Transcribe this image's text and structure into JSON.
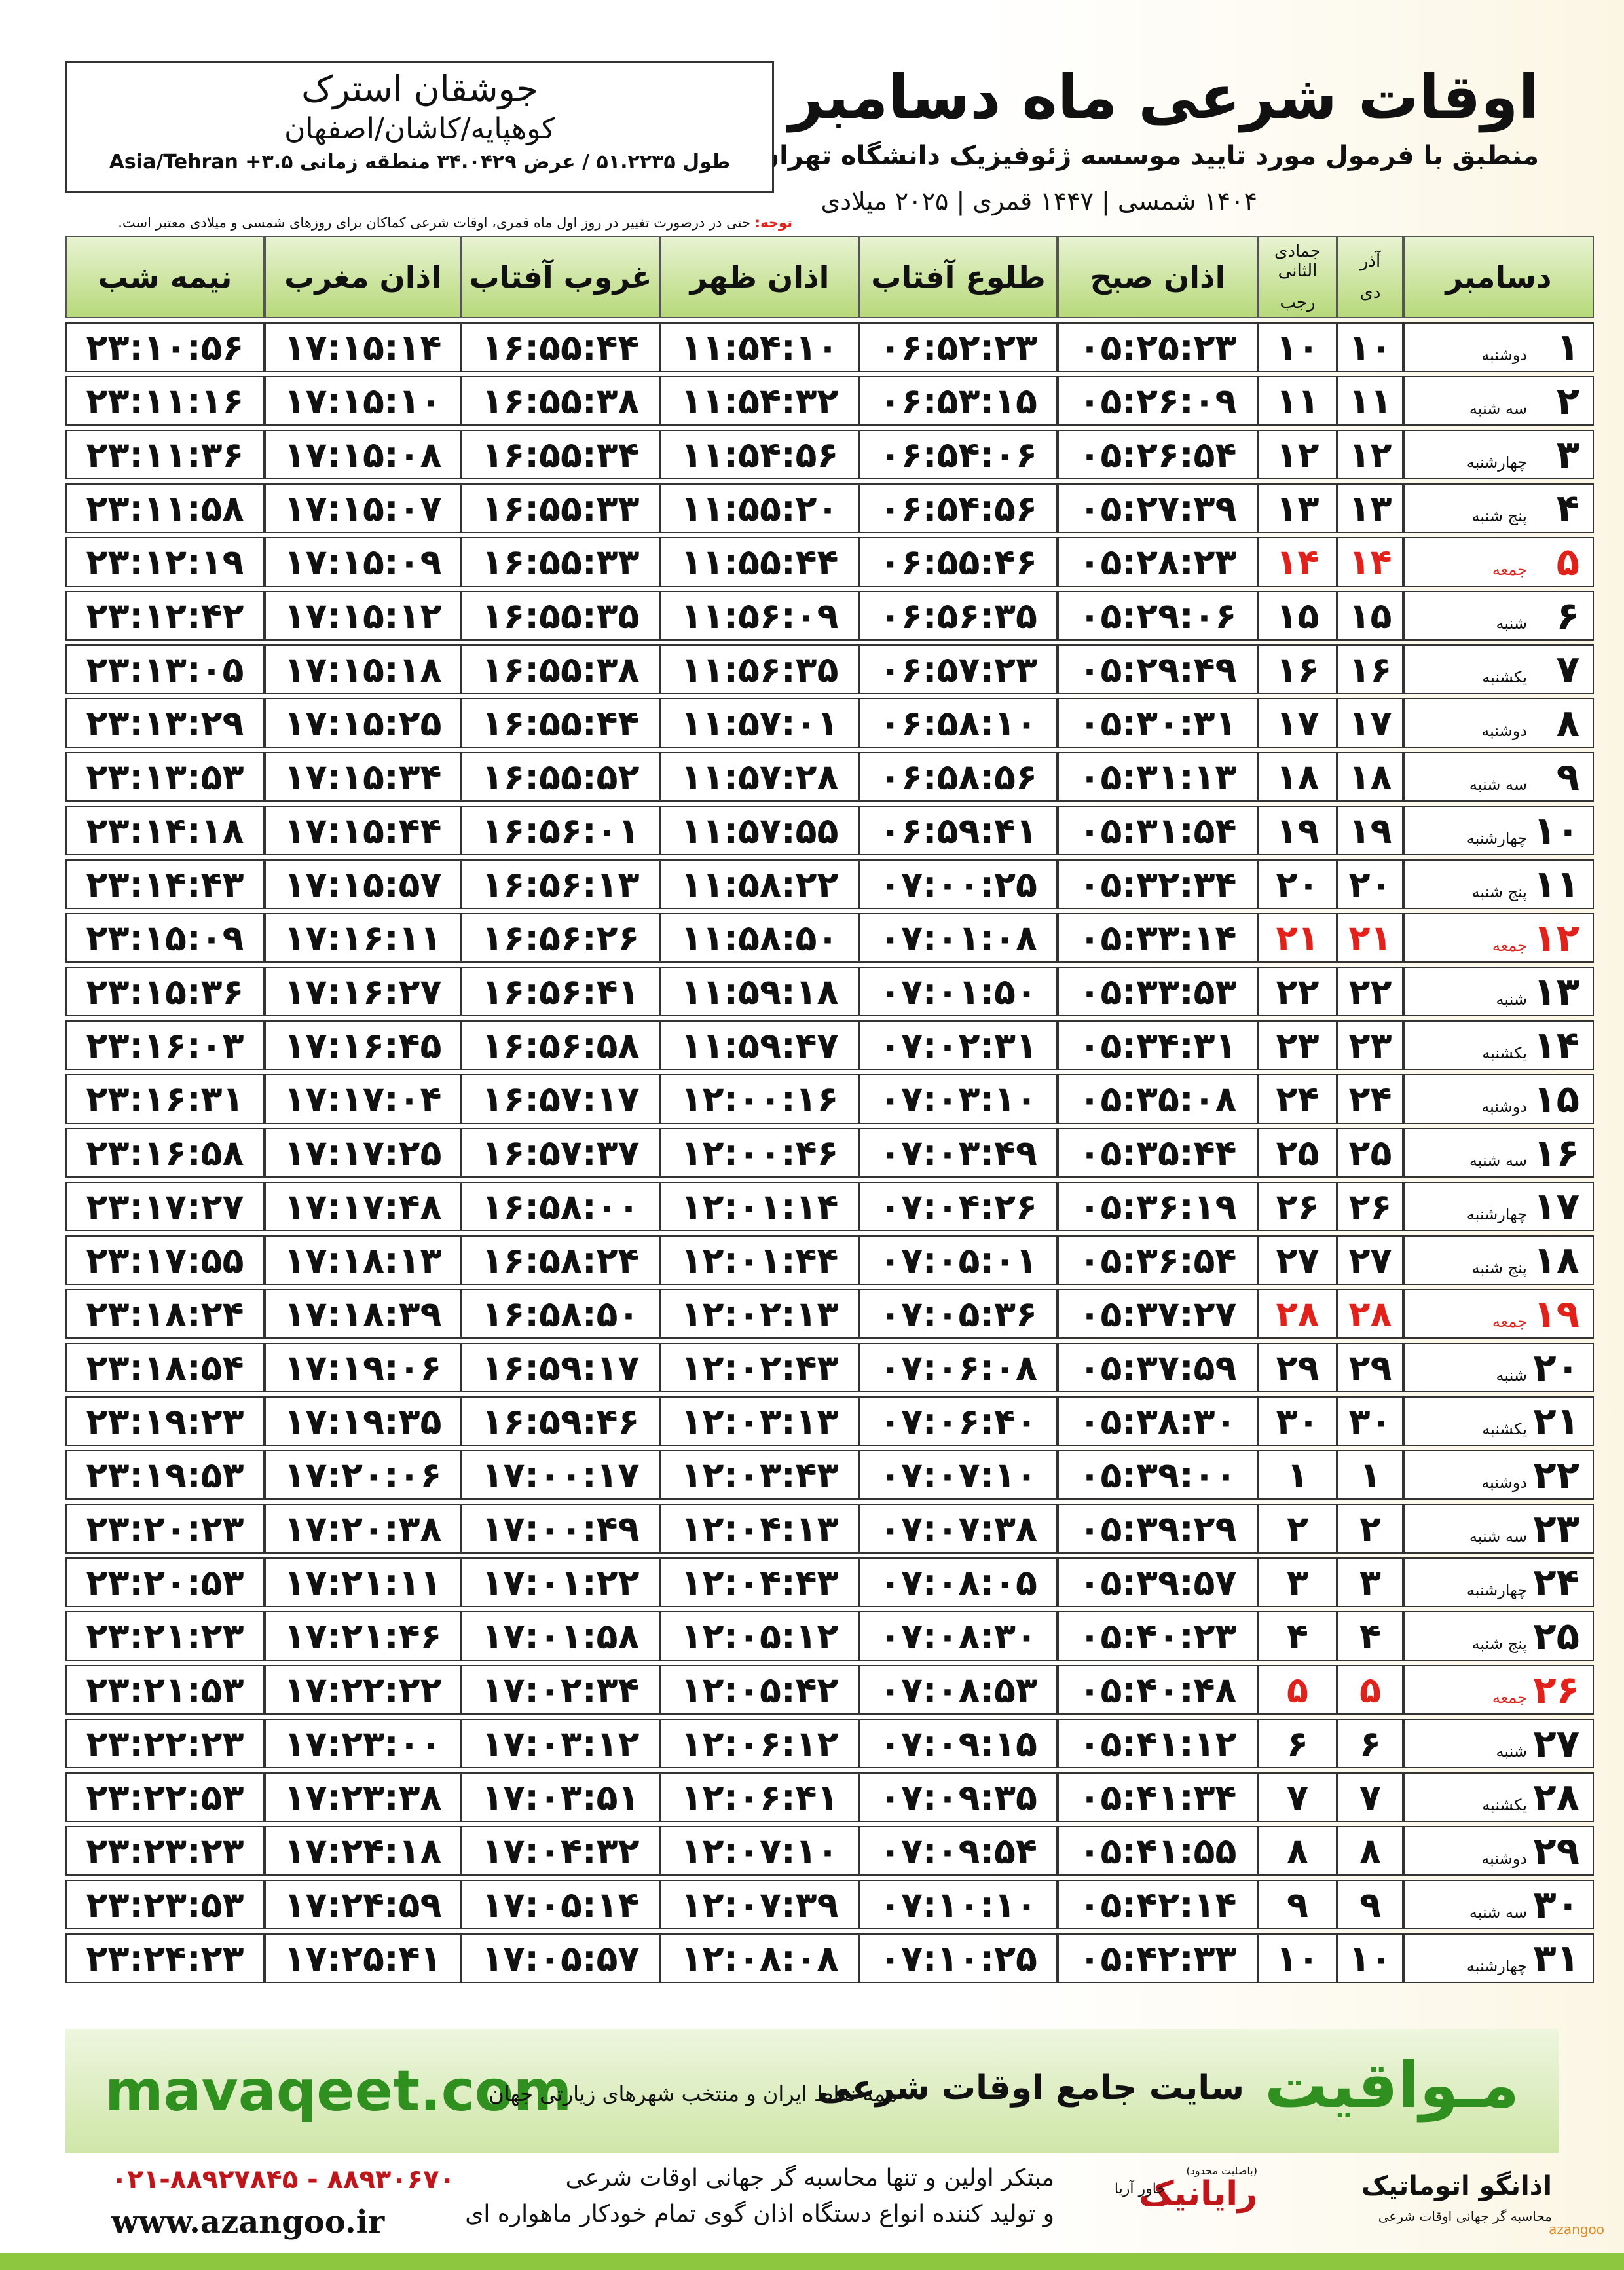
{
  "header": {
    "title": "اوقات شرعی ماه دسامبر",
    "subtitle": "منطبق با فرمول مورد تایید موسسه ژئوفیزیک دانشگاه تهران",
    "years": "۱۴۰۴ شمسی | ۱۴۴۷ قمری | ۲۰۲۵ میلادی"
  },
  "location": {
    "name": "جوشقان استرک",
    "region": "کوهپایه/کاشان/اصفهان",
    "coords": "طول ۵۱.۲۲۳۵ / عرض ۳۴.۰۴۲۹ منطقه زمانی ۳.۵+ Asia/Tehran"
  },
  "note": {
    "label": "توجه:",
    "text": "حتی در درصورت تغییر در روز اول ماه قمری، اوقات شرعی کماکان برای روزهای شمسی و میلادی معتبر است."
  },
  "table": {
    "columns": [
      "دسامبر",
      [
        "آذر",
        "دی"
      ],
      [
        "جمادی الثانی",
        "رجب"
      ],
      "اذان صبح",
      "طلوع آفتاب",
      "اذان ظهر",
      "غروب آفتاب",
      "اذان مغرب",
      "نیمه شب"
    ],
    "holiday_rows": [
      4,
      11,
      18,
      25
    ],
    "holiday_color": "#e3211b",
    "rows": [
      [
        "۱",
        "دوشنبه",
        "۱۰",
        "۱۰",
        "۰۵:۲۵:۲۳",
        "۰۶:۵۲:۲۳",
        "۱۱:۵۴:۱۰",
        "۱۶:۵۵:۴۴",
        "۱۷:۱۵:۱۴",
        "۲۳:۱۰:۵۶"
      ],
      [
        "۲",
        "سه شنبه",
        "۱۱",
        "۱۱",
        "۰۵:۲۶:۰۹",
        "۰۶:۵۳:۱۵",
        "۱۱:۵۴:۳۲",
        "۱۶:۵۵:۳۸",
        "۱۷:۱۵:۱۰",
        "۲۳:۱۱:۱۶"
      ],
      [
        "۳",
        "چهارشنبه",
        "۱۲",
        "۱۲",
        "۰۵:۲۶:۵۴",
        "۰۶:۵۴:۰۶",
        "۱۱:۵۴:۵۶",
        "۱۶:۵۵:۳۴",
        "۱۷:۱۵:۰۸",
        "۲۳:۱۱:۳۶"
      ],
      [
        "۴",
        "پنج شنبه",
        "۱۳",
        "۱۳",
        "۰۵:۲۷:۳۹",
        "۰۶:۵۴:۵۶",
        "۱۱:۵۵:۲۰",
        "۱۶:۵۵:۳۳",
        "۱۷:۱۵:۰۷",
        "۲۳:۱۱:۵۸"
      ],
      [
        "۵",
        "جمعه",
        "۱۴",
        "۱۴",
        "۰۵:۲۸:۲۳",
        "۰۶:۵۵:۴۶",
        "۱۱:۵۵:۴۴",
        "۱۶:۵۵:۳۳",
        "۱۷:۱۵:۰۹",
        "۲۳:۱۲:۱۹"
      ],
      [
        "۶",
        "شنبه",
        "۱۵",
        "۱۵",
        "۰۵:۲۹:۰۶",
        "۰۶:۵۶:۳۵",
        "۱۱:۵۶:۰۹",
        "۱۶:۵۵:۳۵",
        "۱۷:۱۵:۱۲",
        "۲۳:۱۲:۴۲"
      ],
      [
        "۷",
        "یکشنبه",
        "۱۶",
        "۱۶",
        "۰۵:۲۹:۴۹",
        "۰۶:۵۷:۲۳",
        "۱۱:۵۶:۳۵",
        "۱۶:۵۵:۳۸",
        "۱۷:۱۵:۱۸",
        "۲۳:۱۳:۰۵"
      ],
      [
        "۸",
        "دوشنبه",
        "۱۷",
        "۱۷",
        "۰۵:۳۰:۳۱",
        "۰۶:۵۸:۱۰",
        "۱۱:۵۷:۰۱",
        "۱۶:۵۵:۴۴",
        "۱۷:۱۵:۲۵",
        "۲۳:۱۳:۲۹"
      ],
      [
        "۹",
        "سه شنبه",
        "۱۸",
        "۱۸",
        "۰۵:۳۱:۱۳",
        "۰۶:۵۸:۵۶",
        "۱۱:۵۷:۲۸",
        "۱۶:۵۵:۵۲",
        "۱۷:۱۵:۳۴",
        "۲۳:۱۳:۵۳"
      ],
      [
        "۱۰",
        "چهارشنبه",
        "۱۹",
        "۱۹",
        "۰۵:۳۱:۵۴",
        "۰۶:۵۹:۴۱",
        "۱۱:۵۷:۵۵",
        "۱۶:۵۶:۰۱",
        "۱۷:۱۵:۴۴",
        "۲۳:۱۴:۱۸"
      ],
      [
        "۱۱",
        "پنج شنبه",
        "۲۰",
        "۲۰",
        "۰۵:۳۲:۳۴",
        "۰۷:۰۰:۲۵",
        "۱۱:۵۸:۲۲",
        "۱۶:۵۶:۱۳",
        "۱۷:۱۵:۵۷",
        "۲۳:۱۴:۴۳"
      ],
      [
        "۱۲",
        "جمعه",
        "۲۱",
        "۲۱",
        "۰۵:۳۳:۱۴",
        "۰۷:۰۱:۰۸",
        "۱۱:۵۸:۵۰",
        "۱۶:۵۶:۲۶",
        "۱۷:۱۶:۱۱",
        "۲۳:۱۵:۰۹"
      ],
      [
        "۱۳",
        "شنبه",
        "۲۲",
        "۲۲",
        "۰۵:۳۳:۵۳",
        "۰۷:۰۱:۵۰",
        "۱۱:۵۹:۱۸",
        "۱۶:۵۶:۴۱",
        "۱۷:۱۶:۲۷",
        "۲۳:۱۵:۳۶"
      ],
      [
        "۱۴",
        "یکشنبه",
        "۲۳",
        "۲۳",
        "۰۵:۳۴:۳۱",
        "۰۷:۰۲:۳۱",
        "۱۱:۵۹:۴۷",
        "۱۶:۵۶:۵۸",
        "۱۷:۱۶:۴۵",
        "۲۳:۱۶:۰۳"
      ],
      [
        "۱۵",
        "دوشنبه",
        "۲۴",
        "۲۴",
        "۰۵:۳۵:۰۸",
        "۰۷:۰۳:۱۰",
        "۱۲:۰۰:۱۶",
        "۱۶:۵۷:۱۷",
        "۱۷:۱۷:۰۴",
        "۲۳:۱۶:۳۱"
      ],
      [
        "۱۶",
        "سه شنبه",
        "۲۵",
        "۲۵",
        "۰۵:۳۵:۴۴",
        "۰۷:۰۳:۴۹",
        "۱۲:۰۰:۴۶",
        "۱۶:۵۷:۳۷",
        "۱۷:۱۷:۲۵",
        "۲۳:۱۶:۵۸"
      ],
      [
        "۱۷",
        "چهارشنبه",
        "۲۶",
        "۲۶",
        "۰۵:۳۶:۱۹",
        "۰۷:۰۴:۲۶",
        "۱۲:۰۱:۱۴",
        "۱۶:۵۸:۰۰",
        "۱۷:۱۷:۴۸",
        "۲۳:۱۷:۲۷"
      ],
      [
        "۱۸",
        "پنج شنبه",
        "۲۷",
        "۲۷",
        "۰۵:۳۶:۵۴",
        "۰۷:۰۵:۰۱",
        "۱۲:۰۱:۴۴",
        "۱۶:۵۸:۲۴",
        "۱۷:۱۸:۱۳",
        "۲۳:۱۷:۵۵"
      ],
      [
        "۱۹",
        "جمعه",
        "۲۸",
        "۲۸",
        "۰۵:۳۷:۲۷",
        "۰۷:۰۵:۳۶",
        "۱۲:۰۲:۱۳",
        "۱۶:۵۸:۵۰",
        "۱۷:۱۸:۳۹",
        "۲۳:۱۸:۲۴"
      ],
      [
        "۲۰",
        "شنبه",
        "۲۹",
        "۲۹",
        "۰۵:۳۷:۵۹",
        "۰۷:۰۶:۰۸",
        "۱۲:۰۲:۴۳",
        "۱۶:۵۹:۱۷",
        "۱۷:۱۹:۰۶",
        "۲۳:۱۸:۵۴"
      ],
      [
        "۲۱",
        "یکشنبه",
        "۳۰",
        "۳۰",
        "۰۵:۳۸:۳۰",
        "۰۷:۰۶:۴۰",
        "۱۲:۰۳:۱۳",
        "۱۶:۵۹:۴۶",
        "۱۷:۱۹:۳۵",
        "۲۳:۱۹:۲۳"
      ],
      [
        "۲۲",
        "دوشنبه",
        "۱",
        "۱",
        "۰۵:۳۹:۰۰",
        "۰۷:۰۷:۱۰",
        "۱۲:۰۳:۴۳",
        "۱۷:۰۰:۱۷",
        "۱۷:۲۰:۰۶",
        "۲۳:۱۹:۵۳"
      ],
      [
        "۲۳",
        "سه شنبه",
        "۲",
        "۲",
        "۰۵:۳۹:۲۹",
        "۰۷:۰۷:۳۸",
        "۱۲:۰۴:۱۳",
        "۱۷:۰۰:۴۹",
        "۱۷:۲۰:۳۸",
        "۲۳:۲۰:۲۳"
      ],
      [
        "۲۴",
        "چهارشنبه",
        "۳",
        "۳",
        "۰۵:۳۹:۵۷",
        "۰۷:۰۸:۰۵",
        "۱۲:۰۴:۴۳",
        "۱۷:۰۱:۲۲",
        "۱۷:۲۱:۱۱",
        "۲۳:۲۰:۵۳"
      ],
      [
        "۲۵",
        "پنج شنبه",
        "۴",
        "۴",
        "۰۵:۴۰:۲۳",
        "۰۷:۰۸:۳۰",
        "۱۲:۰۵:۱۲",
        "۱۷:۰۱:۵۸",
        "۱۷:۲۱:۴۶",
        "۲۳:۲۱:۲۳"
      ],
      [
        "۲۶",
        "جمعه",
        "۵",
        "۵",
        "۰۵:۴۰:۴۸",
        "۰۷:۰۸:۵۳",
        "۱۲:۰۵:۴۲",
        "۱۷:۰۲:۳۴",
        "۱۷:۲۲:۲۲",
        "۲۳:۲۱:۵۳"
      ],
      [
        "۲۷",
        "شنبه",
        "۶",
        "۶",
        "۰۵:۴۱:۱۲",
        "۰۷:۰۹:۱۵",
        "۱۲:۰۶:۱۲",
        "۱۷:۰۳:۱۲",
        "۱۷:۲۳:۰۰",
        "۲۳:۲۲:۲۳"
      ],
      [
        "۲۸",
        "یکشنبه",
        "۷",
        "۷",
        "۰۵:۴۱:۳۴",
        "۰۷:۰۹:۳۵",
        "۱۲:۰۶:۴۱",
        "۱۷:۰۳:۵۱",
        "۱۷:۲۳:۳۸",
        "۲۳:۲۲:۵۳"
      ],
      [
        "۲۹",
        "دوشنبه",
        "۸",
        "۸",
        "۰۵:۴۱:۵۵",
        "۰۷:۰۹:۵۴",
        "۱۲:۰۷:۱۰",
        "۱۷:۰۴:۳۲",
        "۱۷:۲۴:۱۸",
        "۲۳:۲۳:۲۳"
      ],
      [
        "۳۰",
        "سه شنبه",
        "۹",
        "۹",
        "۰۵:۴۲:۱۴",
        "۰۷:۱۰:۱۰",
        "۱۲:۰۷:۳۹",
        "۱۷:۰۵:۱۴",
        "۱۷:۲۴:۵۹",
        "۲۳:۲۳:۵۳"
      ],
      [
        "۳۱",
        "چهارشنبه",
        "۱۰",
        "۱۰",
        "۰۵:۴۲:۳۳",
        "۰۷:۱۰:۲۵",
        "۱۲:۰۸:۰۸",
        "۱۷:۰۵:۵۷",
        "۱۷:۲۵:۴۱",
        "۲۳:۲۴:۲۳"
      ]
    ]
  },
  "footer": {
    "site": "mavaqeet.com",
    "brand": "مـواقیت",
    "slogan": "سایت جامع اوقات شرعی",
    "scope": "همه نقاط ایران و منتخب شهرهای زیارتی جهان"
  },
  "bottom": {
    "phone": "۰۲۱-۸۸۹۲۷۸۴۵ - ۸۸۹۳۰۶۷۰",
    "web": "www.azangoo.ir",
    "line1": "مبتکر اولین و تنها محاسبه گر جهانی اوقات شرعی",
    "line2": "و تولید کننده انواع دستگاه اذان گوی تمام خودکار ماهواره ای",
    "partner": "رایانیک",
    "partner_sub": "خاور آریا",
    "partner_note": "(باصلیت محدود)",
    "logo": "اذانگو اتوماتیک",
    "logo_sub": "محاسبه گر جهانی اوقات شرعی",
    "logo_en": "azangoo"
  }
}
